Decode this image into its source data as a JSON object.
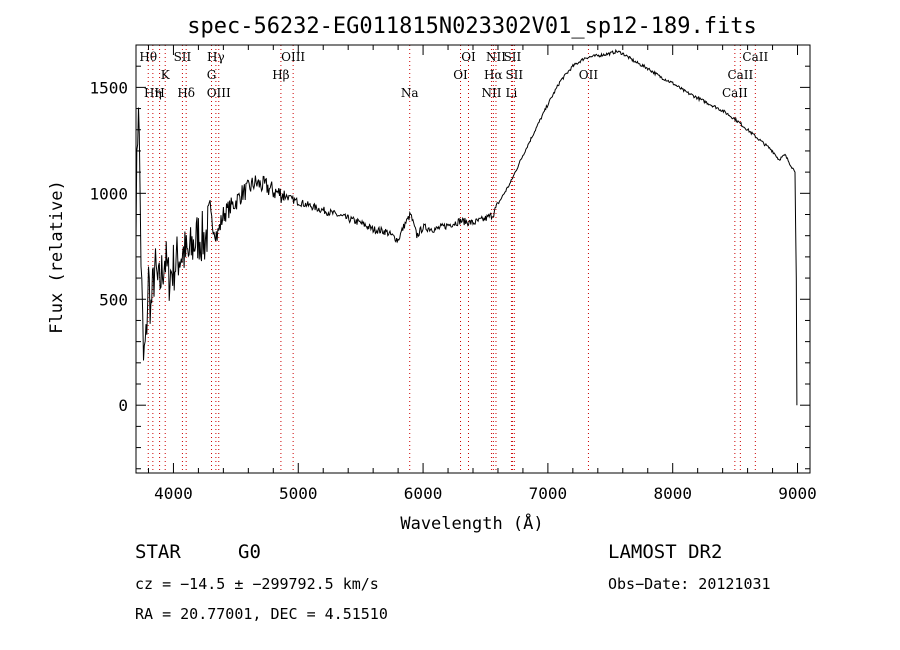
{
  "chart_data": {
    "type": "line",
    "title": "spec-56232-EG011815N023302V01_sp12-189.fits",
    "xlabel": "Wavelength (Å)",
    "ylabel": "Flux (relative)",
    "xlim": [
      3700,
      9100
    ],
    "ylim": [
      -320,
      1700
    ],
    "xticks": [
      4000,
      5000,
      6000,
      7000,
      8000,
      9000
    ],
    "yticks": [
      0,
      500,
      1000,
      1500
    ],
    "xtick_labels": [
      "4000",
      "5000",
      "6000",
      "7000",
      "8000",
      "9000"
    ],
    "ytick_labels": [
      "0",
      "500",
      "1000",
      "1500"
    ],
    "grid": false,
    "line_color": "#000000",
    "marker_color": "#cc0000",
    "spectrum": {
      "x": [
        3700,
        3720,
        3740,
        3760,
        3780,
        3800,
        3820,
        3850,
        3880,
        3900,
        3930,
        3960,
        4000,
        4040,
        4080,
        4120,
        4160,
        4200,
        4250,
        4300,
        4350,
        4400,
        4450,
        4500,
        4550,
        4600,
        4650,
        4700,
        4750,
        4800,
        4850,
        4900,
        4950,
        5000,
        5100,
        5200,
        5300,
        5400,
        5500,
        5600,
        5700,
        5800,
        5850,
        5900,
        5950,
        6000,
        6100,
        6200,
        6300,
        6400,
        6500,
        6560,
        6600,
        6650,
        6700,
        6800,
        6900,
        7000,
        7100,
        7200,
        7300,
        7400,
        7500,
        7550,
        7600,
        7700,
        7800,
        7900,
        8000,
        8100,
        8200,
        8300,
        8400,
        8500,
        8600,
        8700,
        8800,
        8850,
        8900,
        8950,
        8980,
        8990,
        8995
      ],
      "y": [
        900,
        1480,
        700,
        200,
        300,
        600,
        450,
        650,
        550,
        600,
        700,
        600,
        650,
        700,
        720,
        700,
        760,
        800,
        780,
        880,
        800,
        900,
        930,
        960,
        1000,
        1020,
        1050,
        1040,
        1030,
        1010,
        1000,
        990,
        970,
        960,
        940,
        920,
        900,
        880,
        860,
        830,
        820,
        780,
        850,
        900,
        800,
        840,
        830,
        850,
        870,
        860,
        880,
        900,
        950,
        1000,
        1050,
        1180,
        1300,
        1420,
        1530,
        1600,
        1640,
        1650,
        1660,
        1670,
        1660,
        1620,
        1590,
        1550,
        1520,
        1480,
        1450,
        1420,
        1390,
        1350,
        1300,
        1250,
        1200,
        1160,
        1180,
        1130,
        1100,
        600,
        0
      ]
    },
    "lines": [
      {
        "name": "Hθ",
        "x": 3798,
        "row": 0
      },
      {
        "name": "H",
        "x": 3889,
        "row": 1
      },
      {
        "name": "Hη",
        "x": 3835,
        "row": 1
      },
      {
        "name": "K",
        "x": 3934,
        "row": 0.5
      },
      {
        "name": "SII",
        "x": 4072,
        "row": 0
      },
      {
        "name": "Hδ",
        "x": 4102,
        "row": 1
      },
      {
        "name": "Hγ",
        "x": 4340,
        "row": 0
      },
      {
        "name": "G",
        "x": 4305,
        "row": 0.5
      },
      {
        "name": "OIII",
        "x": 4363,
        "row": 1
      },
      {
        "name": "OIII",
        "x": 4959,
        "row": 0
      },
      {
        "name": "Hβ",
        "x": 4861,
        "row": 0.5
      },
      {
        "name": "Na",
        "x": 5893,
        "row": 1
      },
      {
        "name": "OI",
        "x": 6364,
        "row": 0
      },
      {
        "name": "OI",
        "x": 6300,
        "row": 0.5
      },
      {
        "name": "NII",
        "x": 6584,
        "row": 0
      },
      {
        "name": "Hα",
        "x": 6563,
        "row": 0.5
      },
      {
        "name": "NII",
        "x": 6548,
        "row": 1
      },
      {
        "name": "SII",
        "x": 6716,
        "row": 0
      },
      {
        "name": "SII",
        "x": 6731,
        "row": 0.5
      },
      {
        "name": "Li",
        "x": 6708,
        "row": 1
      },
      {
        "name": "OII",
        "x": 7325,
        "row": 0.5
      },
      {
        "name": "CaII",
        "x": 8662,
        "row": 0
      },
      {
        "name": "CaII",
        "x": 8542,
        "row": 0.5
      },
      {
        "name": "CaII",
        "x": 8498,
        "row": 1
      }
    ]
  },
  "info": {
    "object_class": "STAR",
    "subclass": "G0",
    "survey": "LAMOST DR2",
    "redshift": "cz = −14.5 ± −299792.5 km/s",
    "obs_date": "Obs−Date: 20121031",
    "coordinates": "RA =  20.77001, DEC =   4.51510"
  }
}
